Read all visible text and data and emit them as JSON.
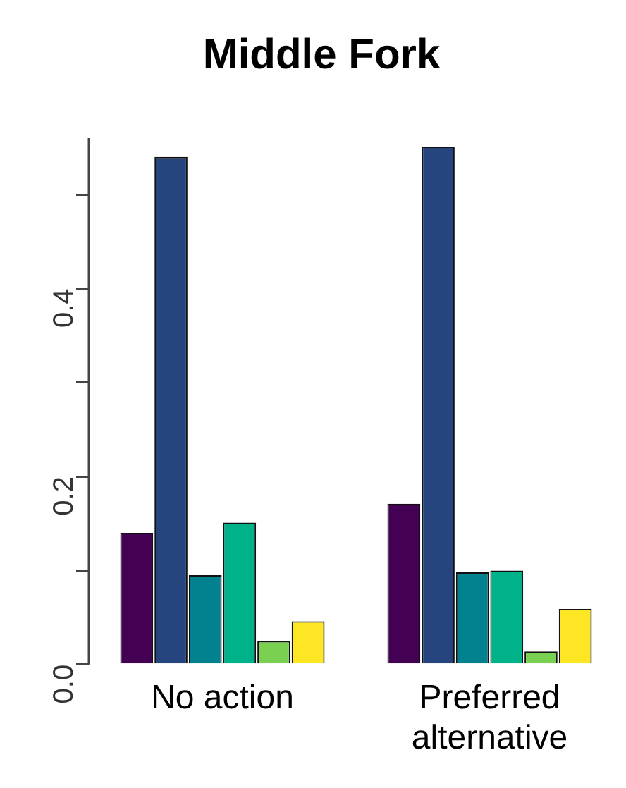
{
  "chart_data": {
    "type": "bar",
    "title": "Middle Fork",
    "categories": [
      "No action",
      "Preferred alternative"
    ],
    "series": [
      {
        "color": "#440154",
        "values": [
          0.14,
          0.171
        ]
      },
      {
        "color": "#26457f",
        "values": [
          0.54,
          0.551
        ]
      },
      {
        "color": "#02818f",
        "values": [
          0.095,
          0.098
        ]
      },
      {
        "color": "#00b28a",
        "values": [
          0.151,
          0.1
        ]
      },
      {
        "color": "#7ad151",
        "values": [
          0.025,
          0.014
        ]
      },
      {
        "color": "#fde725",
        "values": [
          0.046,
          0.059
        ]
      }
    ],
    "ylim": [
      0,
      0.56
    ],
    "yticks": [
      {
        "value": 0,
        "label": "0.0"
      },
      {
        "value": 0.1,
        "label": null
      },
      {
        "value": 0.2,
        "label": "0.2"
      },
      {
        "value": 0.3,
        "label": null
      },
      {
        "value": 0.4,
        "label": "0.4"
      },
      {
        "value": 0.5,
        "label": null
      }
    ],
    "grid": false,
    "legend": false
  }
}
